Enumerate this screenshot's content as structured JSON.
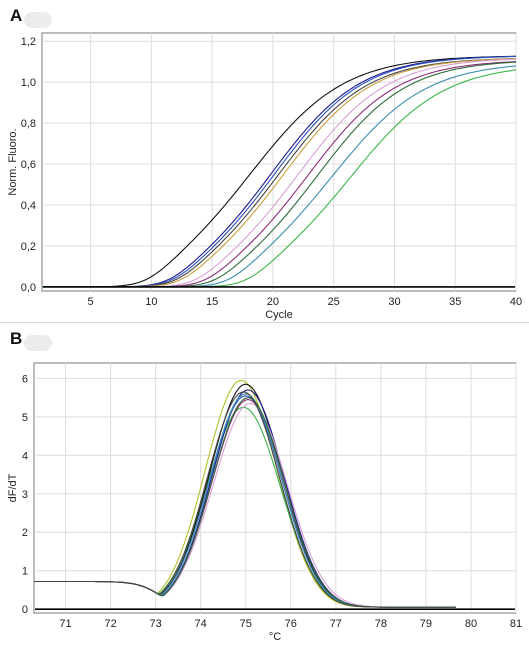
{
  "panels": {
    "a": {
      "letter": "A"
    },
    "b": {
      "letter": "B"
    }
  },
  "chart_data": [
    {
      "type": "line",
      "title": "",
      "xlabel": "Cycle",
      "ylabel": "Norm. Fluoro.",
      "xlim": [
        1,
        40
      ],
      "ylim": [
        -0.02,
        1.24
      ],
      "xticks": [
        5,
        10,
        15,
        20,
        25,
        30,
        35,
        40
      ],
      "yticks": [
        0.0,
        0.2,
        0.4,
        0.6,
        0.8,
        1.0,
        1.2
      ],
      "ytick_labels": [
        "0,0",
        "0,2",
        "0,4",
        "0,6",
        "0,8",
        "1,0",
        "1,2"
      ],
      "grid": true,
      "baseline": {
        "y": 0.0,
        "color": "#000000"
      },
      "series": [
        {
          "color": "#111111",
          "mid": 18.3,
          "slope": 3.8,
          "max": 1.13
        },
        {
          "color": "#1a1a8c",
          "mid": 20.0,
          "slope": 3.6,
          "max": 1.13
        },
        {
          "color": "#2a4fbf",
          "mid": 20.3,
          "slope": 3.6,
          "max": 1.13
        },
        {
          "color": "#444444",
          "mid": 20.6,
          "slope": 3.6,
          "max": 1.12
        },
        {
          "color": "#c8a040",
          "mid": 21.0,
          "slope": 3.6,
          "max": 1.12
        },
        {
          "color": "#d8a0d8",
          "mid": 22.2,
          "slope": 3.6,
          "max": 1.12
        },
        {
          "color": "#8b2e7a",
          "mid": 23.0,
          "slope": 3.6,
          "max": 1.11
        },
        {
          "color": "#2f6b3a",
          "mid": 23.8,
          "slope": 3.6,
          "max": 1.11
        },
        {
          "color": "#3d8fb0",
          "mid": 25.0,
          "slope": 3.8,
          "max": 1.1
        },
        {
          "color": "#3cb54a",
          "mid": 26.5,
          "slope": 3.8,
          "max": 1.09
        }
      ]
    },
    {
      "type": "line",
      "title": "",
      "xlabel": "°C",
      "ylabel": "dF/dT",
      "xlim": [
        70.3,
        81
      ],
      "ylim": [
        -0.1,
        6.4
      ],
      "xticks": [
        71,
        72,
        73,
        74,
        75,
        76,
        77,
        78,
        79,
        80,
        81
      ],
      "yticks": [
        0,
        1,
        2,
        3,
        4,
        5,
        6
      ],
      "ytick_labels": [
        "0",
        "1",
        "2",
        "3",
        "4",
        "5",
        "6"
      ],
      "grid": true,
      "baseline": {
        "y": 0.0,
        "color": "#000000"
      },
      "series": [
        {
          "color": "#b5c228",
          "peak_x": 74.9,
          "peak_y": 5.95,
          "width": 0.8
        },
        {
          "color": "#3cb54a",
          "peak_x": 74.95,
          "peak_y": 5.25,
          "width": 0.82
        },
        {
          "color": "#111111",
          "peak_x": 75.0,
          "peak_y": 5.85,
          "width": 0.8
        },
        {
          "color": "#1a1a8c",
          "peak_x": 75.05,
          "peak_y": 5.7,
          "width": 0.8
        },
        {
          "color": "#2a4fbf",
          "peak_x": 75.0,
          "peak_y": 5.55,
          "width": 0.8
        },
        {
          "color": "#8b2e7a",
          "peak_x": 75.05,
          "peak_y": 5.45,
          "width": 0.8
        },
        {
          "color": "#d8a0d8",
          "peak_x": 75.1,
          "peak_y": 5.35,
          "width": 0.82
        },
        {
          "color": "#3d8fb0",
          "peak_x": 75.0,
          "peak_y": 5.6,
          "width": 0.8
        },
        {
          "color": "#2f6b3a",
          "peak_x": 75.05,
          "peak_y": 5.5,
          "width": 0.8
        },
        {
          "color": "#444444",
          "peak_x": 74.95,
          "peak_y": 5.65,
          "width": 0.8
        }
      ]
    }
  ]
}
